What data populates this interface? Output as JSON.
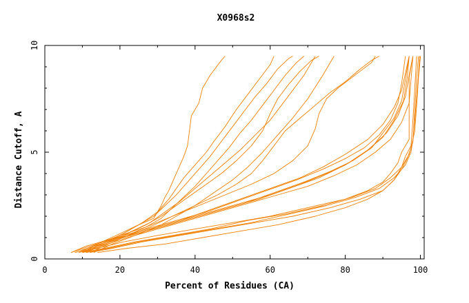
{
  "chart_data": {
    "type": "line",
    "title": "X0968s2",
    "xlabel": "Percent of Residues (CA)",
    "ylabel": "Distance Cutoff, A",
    "xlim": [
      0,
      101
    ],
    "ylim": [
      0,
      10
    ],
    "x_ticks": [
      0,
      20,
      40,
      60,
      80,
      100
    ],
    "y_ticks": [
      0,
      5,
      10
    ],
    "grid": false,
    "legend": "none",
    "line_color": "#f07f00",
    "series": [
      {
        "x": [
          10,
          14,
          19,
          25,
          29,
          31,
          32,
          33,
          34,
          35,
          37,
          38,
          38.5,
          39,
          41,
          42,
          44,
          47,
          48
        ],
        "y": [
          0.3,
          0.7,
          1.1,
          1.6,
          1.9,
          2.5,
          2.9,
          3.2,
          3.6,
          4.0,
          4.8,
          5.3,
          6.0,
          6.7,
          7.3,
          8.0,
          8.6,
          9.3,
          9.5
        ]
      },
      {
        "x": [
          11,
          15,
          21,
          26,
          30,
          33,
          35,
          37,
          40,
          43,
          45,
          48,
          51,
          54,
          57,
          60,
          61
        ],
        "y": [
          0.3,
          0.7,
          1.2,
          1.7,
          2.2,
          2.8,
          3.3,
          3.8,
          4.4,
          5.0,
          5.5,
          6.2,
          7.0,
          7.7,
          8.4,
          9.1,
          9.5
        ]
      },
      {
        "x": [
          10,
          15,
          20,
          25,
          29,
          32,
          35,
          38,
          41,
          44,
          47,
          50,
          53,
          56,
          59,
          62,
          65,
          66
        ],
        "y": [
          0.3,
          0.7,
          1.1,
          1.6,
          2.0,
          2.5,
          3.0,
          3.6,
          4.2,
          4.8,
          5.5,
          6.2,
          6.9,
          7.6,
          8.2,
          8.9,
          9.4,
          9.5
        ]
      },
      {
        "x": [
          12,
          17,
          22,
          27,
          31,
          34,
          37,
          40,
          43,
          46,
          49,
          52,
          55,
          58,
          61,
          64,
          67,
          69
        ],
        "y": [
          0.3,
          0.7,
          1.1,
          1.5,
          1.9,
          2.4,
          2.9,
          3.4,
          4.0,
          4.6,
          5.2,
          5.9,
          6.5,
          7.2,
          7.9,
          8.6,
          9.2,
          9.5
        ]
      },
      {
        "x": [
          11,
          16,
          22,
          28,
          32,
          36,
          40,
          44,
          48,
          52,
          56,
          60,
          63,
          66,
          69,
          71,
          72
        ],
        "y": [
          0.3,
          0.7,
          1.2,
          1.7,
          2.2,
          2.7,
          3.3,
          3.9,
          4.5,
          5.1,
          5.8,
          6.5,
          7.2,
          7.9,
          8.6,
          9.2,
          9.5
        ]
      },
      {
        "x": [
          10,
          15,
          21,
          27,
          31,
          35,
          39,
          43,
          47,
          51,
          55,
          58,
          60,
          62,
          65,
          68,
          71,
          73
        ],
        "y": [
          0.3,
          0.7,
          1.1,
          1.6,
          2.0,
          2.5,
          3.0,
          3.5,
          4.0,
          4.6,
          5.3,
          6.0,
          6.8,
          7.5,
          8.2,
          8.8,
          9.3,
          9.5
        ]
      },
      {
        "x": [
          13,
          18,
          24,
          30,
          35,
          40,
          45,
          50,
          54,
          58,
          62,
          66,
          70,
          74,
          77
        ],
        "y": [
          0.3,
          0.7,
          1.1,
          1.5,
          2.0,
          2.5,
          3.1,
          3.7,
          4.3,
          5.0,
          5.8,
          6.6,
          7.5,
          8.6,
          9.5
        ]
      },
      {
        "x": [
          11,
          16,
          22,
          28,
          34,
          40,
          46,
          51,
          55,
          58,
          61,
          64,
          68,
          72,
          76,
          80,
          84,
          87,
          89
        ],
        "y": [
          0.3,
          0.7,
          1.1,
          1.5,
          2.0,
          2.5,
          3.0,
          3.5,
          4.0,
          4.6,
          5.3,
          6.0,
          6.6,
          7.2,
          7.8,
          8.3,
          8.9,
          9.3,
          9.5
        ]
      },
      {
        "x": [
          9,
          14,
          20,
          27,
          34,
          41,
          48,
          55,
          61,
          66,
          70,
          72,
          73,
          75,
          78,
          81,
          84,
          87,
          88
        ],
        "y": [
          0.3,
          0.7,
          1.1,
          1.5,
          2.0,
          2.5,
          3.0,
          3.5,
          4.0,
          4.6,
          5.3,
          6.1,
          6.8,
          7.5,
          8.0,
          8.4,
          8.8,
          9.2,
          9.5
        ]
      },
      {
        "x": [
          8,
          13,
          20,
          28,
          36,
          44,
          52,
          60,
          68,
          74,
          80,
          86,
          90,
          93,
          95,
          96,
          97
        ],
        "y": [
          0.3,
          0.6,
          1.0,
          1.4,
          1.8,
          2.3,
          2.8,
          3.3,
          3.8,
          4.3,
          4.9,
          5.6,
          6.3,
          7.1,
          7.9,
          8.7,
          9.5
        ]
      },
      {
        "x": [
          7,
          12,
          19,
          27,
          35,
          43,
          51,
          59,
          67,
          74,
          80,
          85,
          89,
          92,
          94,
          95,
          96
        ],
        "y": [
          0.3,
          0.6,
          1.0,
          1.4,
          1.8,
          2.2,
          2.7,
          3.2,
          3.7,
          4.2,
          4.7,
          5.2,
          5.8,
          6.5,
          7.3,
          8.2,
          9.5
        ]
      },
      {
        "x": [
          9,
          14,
          21,
          29,
          37,
          45,
          53,
          61,
          69,
          76,
          82,
          87,
          90,
          93,
          95,
          96,
          97
        ],
        "y": [
          0.3,
          0.6,
          1.0,
          1.4,
          1.8,
          2.2,
          2.6,
          3.1,
          3.6,
          4.1,
          4.6,
          5.2,
          5.9,
          6.6,
          7.4,
          8.4,
          9.5
        ]
      },
      {
        "x": [
          10,
          15,
          22,
          30,
          38,
          46,
          54,
          62,
          70,
          77,
          83,
          88,
          92,
          95,
          97,
          97.5,
          98
        ],
        "y": [
          0.3,
          0.6,
          1.0,
          1.4,
          1.8,
          2.2,
          2.6,
          3.0,
          3.4,
          3.9,
          4.4,
          5.0,
          5.6,
          6.4,
          7.3,
          8.4,
          9.5
        ]
      },
      {
        "x": [
          8,
          13,
          20,
          28,
          36,
          44,
          52,
          60,
          68,
          75,
          81,
          86,
          90,
          93,
          95.5,
          96.5,
          97
        ],
        "y": [
          0.3,
          0.6,
          1.0,
          1.4,
          1.8,
          2.2,
          2.6,
          3.0,
          3.5,
          4.0,
          4.5,
          5.1,
          5.7,
          6.5,
          7.4,
          8.5,
          9.5
        ]
      },
      {
        "x": [
          7,
          11,
          17,
          25,
          33,
          41,
          49,
          57,
          65,
          73,
          80,
          86,
          91,
          94,
          96,
          97,
          98
        ],
        "y": [
          0.3,
          0.6,
          0.9,
          1.2,
          1.6,
          2.0,
          2.4,
          2.8,
          3.3,
          3.8,
          4.4,
          5.1,
          5.9,
          6.7,
          7.6,
          8.6,
          9.5
        ]
      },
      {
        "x": [
          9,
          14,
          21,
          30,
          40,
          50,
          60,
          70,
          80,
          86,
          90,
          92,
          94,
          95,
          96,
          97,
          97,
          97,
          97,
          98
        ],
        "y": [
          0.3,
          0.5,
          0.8,
          1.1,
          1.4,
          1.7,
          2.0,
          2.4,
          2.8,
          3.2,
          3.6,
          4.0,
          4.5,
          5.0,
          5.3,
          5.6,
          6.5,
          7.5,
          8.5,
          9.5
        ]
      },
      {
        "x": [
          10,
          16,
          24,
          34,
          44,
          54,
          64,
          74,
          82,
          88,
          92,
          95,
          96,
          97.5,
          98,
          98.5,
          99
        ],
        "y": [
          0.3,
          0.5,
          0.8,
          1.1,
          1.4,
          1.8,
          2.1,
          2.5,
          2.9,
          3.3,
          3.8,
          4.3,
          4.8,
          5.3,
          6.5,
          8.0,
          9.5
        ]
      },
      {
        "x": [
          12,
          18,
          26,
          36,
          46,
          56,
          66,
          76,
          84,
          90,
          93,
          95,
          97,
          98,
          98.5,
          99,
          99.5
        ],
        "y": [
          0.3,
          0.5,
          0.8,
          1.1,
          1.4,
          1.7,
          2.0,
          2.4,
          2.8,
          3.2,
          3.7,
          4.3,
          4.9,
          5.5,
          7.0,
          8.5,
          9.5
        ]
      },
      {
        "x": [
          14,
          22,
          32,
          42,
          52,
          62,
          72,
          80,
          86,
          90,
          93,
          95,
          96.5,
          97.5,
          98.5,
          99,
          99.5,
          100
        ],
        "y": [
          0.3,
          0.5,
          0.7,
          1.0,
          1.3,
          1.6,
          2.0,
          2.4,
          2.8,
          3.2,
          3.7,
          4.2,
          4.7,
          5.2,
          6.0,
          7.2,
          8.5,
          9.5
        ]
      },
      {
        "x": [
          11,
          17,
          25,
          35,
          45,
          55,
          65,
          75,
          83,
          89,
          93,
          96,
          97.5,
          98,
          98.5,
          99,
          99.5,
          99.8
        ],
        "y": [
          0.3,
          0.5,
          0.8,
          1.1,
          1.4,
          1.7,
          2.1,
          2.5,
          2.9,
          3.3,
          3.8,
          4.4,
          5.0,
          5.6,
          6.5,
          7.6,
          8.7,
          9.5
        ]
      }
    ]
  }
}
